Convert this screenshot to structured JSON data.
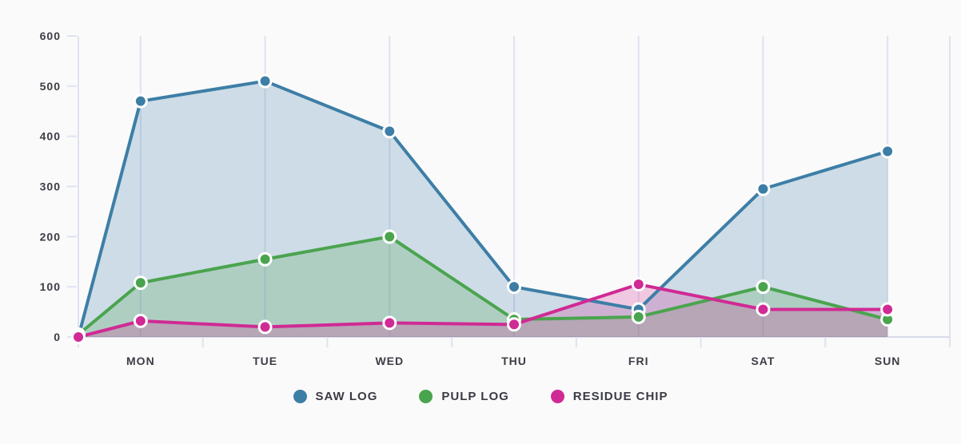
{
  "chart_data": {
    "type": "line",
    "title": "",
    "categories": [
      "",
      "MON",
      "TUE",
      "WED",
      "THU",
      "FRI",
      "SAT",
      "SUN"
    ],
    "x_positions": [
      0,
      0.5,
      1.5,
      2.5,
      3.5,
      4.5,
      5.5,
      6.5
    ],
    "x_axis_units": 7,
    "series": [
      {
        "name": "SAW LOG",
        "color": "#3d7ea6",
        "values": [
          0,
          470,
          510,
          410,
          100,
          55,
          295,
          370
        ]
      },
      {
        "name": "PULP LOG",
        "color": "#4aa44e",
        "values": [
          5,
          108,
          155,
          200,
          35,
          40,
          100,
          35
        ]
      },
      {
        "name": "RESIDUE CHIP",
        "color": "#d02a94",
        "values": [
          0,
          32,
          20,
          28,
          25,
          105,
          55,
          55
        ]
      }
    ],
    "y_ticks": [
      0,
      100,
      200,
      300,
      400,
      500,
      600
    ],
    "ylim": [
      0,
      600
    ],
    "xlabel": "",
    "ylabel": "",
    "grid": "vertical",
    "area_fill": true,
    "legend_position": "bottom",
    "background": "#fafafa",
    "grid_color": "#dfe2f2",
    "axis_line_color": "#d8dbe8",
    "axis_text_color": "#3d3d46",
    "point_border_color": "#ffffff",
    "area_opacity": 0.24
  }
}
